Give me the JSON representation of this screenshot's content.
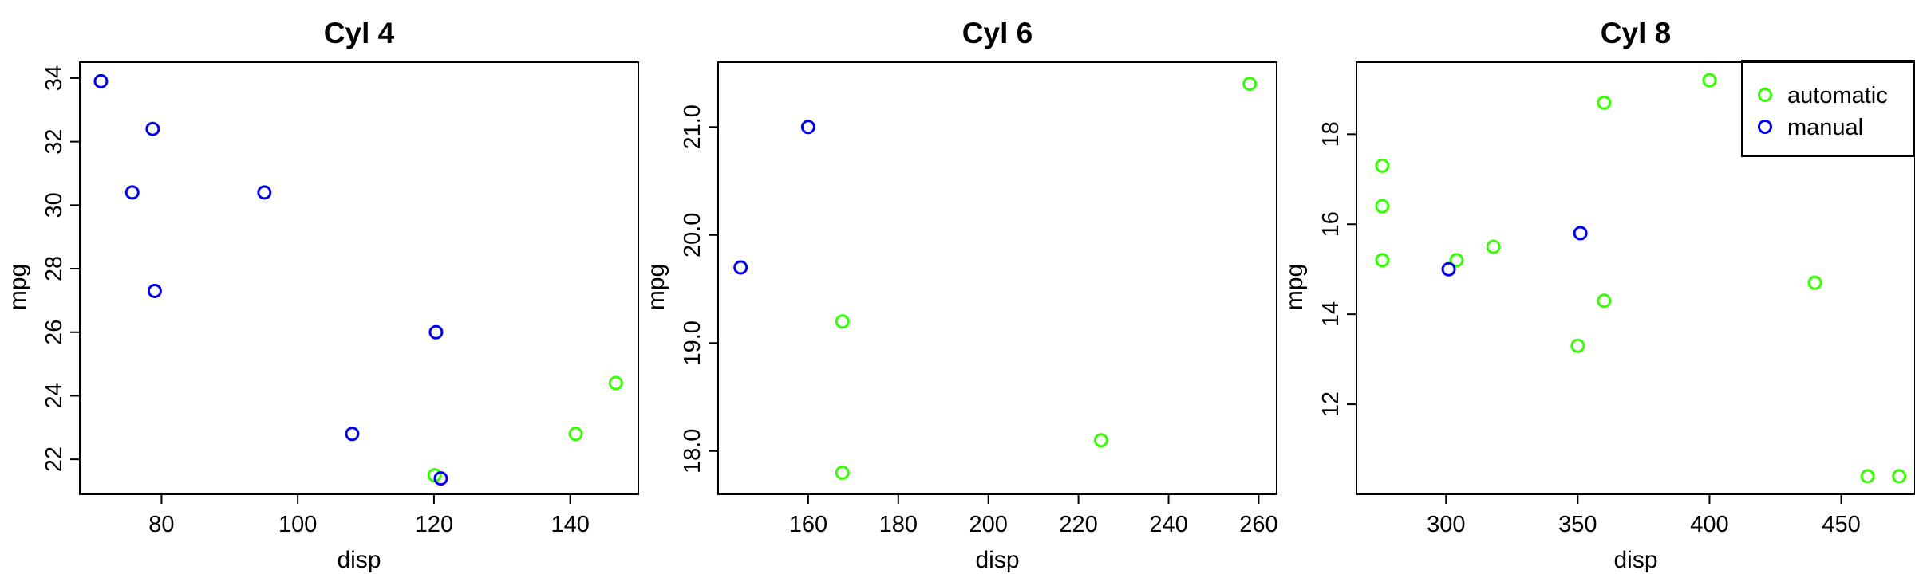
{
  "colors": {
    "automatic": "#33ff00",
    "manual": "#0000ee"
  },
  "legend": {
    "position": "top-right",
    "panel": 2,
    "entries": [
      {
        "key": "automatic",
        "label": "automatic"
      },
      {
        "key": "manual",
        "label": "manual"
      }
    ]
  },
  "chart_data": [
    {
      "type": "scatter",
      "title": "Cyl 4",
      "xlabel": "disp",
      "ylabel": "mpg",
      "xlim": [
        68,
        150
      ],
      "ylim": [
        20.9,
        34.5
      ],
      "xticks": [
        80,
        100,
        120,
        140
      ],
      "xtick_labels": [
        "80",
        "100",
        "120",
        "140"
      ],
      "yticks": [
        22,
        24,
        26,
        28,
        30,
        32,
        34
      ],
      "ytick_labels": [
        "22",
        "24",
        "26",
        "28",
        "30",
        "32",
        "34"
      ],
      "series": [
        {
          "name": "automatic",
          "points": [
            [
              120.1,
              21.5
            ],
            [
              146.7,
              24.4
            ],
            [
              140.8,
              22.8
            ]
          ]
        },
        {
          "name": "manual",
          "points": [
            [
              108,
              22.8
            ],
            [
              78.7,
              32.4
            ],
            [
              75.7,
              30.4
            ],
            [
              71.1,
              33.9
            ],
            [
              79,
              27.3
            ],
            [
              120.3,
              26
            ],
            [
              95.1,
              30.4
            ],
            [
              121,
              21.4
            ]
          ]
        }
      ]
    },
    {
      "type": "scatter",
      "title": "Cyl 6",
      "xlabel": "disp",
      "ylabel": "mpg",
      "xlim": [
        140,
        264
      ],
      "ylim": [
        17.6,
        21.6
      ],
      "xticks": [
        160,
        180,
        200,
        220,
        240,
        260
      ],
      "xtick_labels": [
        "160",
        "180",
        "200",
        "220",
        "240",
        "260"
      ],
      "yticks": [
        18,
        19,
        20,
        21
      ],
      "ytick_labels": [
        "18.0",
        "19.0",
        "20.0",
        "21.0"
      ],
      "series": [
        {
          "name": "automatic",
          "points": [
            [
              258,
              21.4
            ],
            [
              225,
              18.1
            ],
            [
              167.6,
              19.2
            ],
            [
              167.6,
              17.8
            ]
          ]
        },
        {
          "name": "manual",
          "points": [
            [
              160,
              21.0
            ],
            [
              145,
              19.7
            ]
          ]
        }
      ]
    },
    {
      "type": "scatter",
      "title": "Cyl 8",
      "xlabel": "disp",
      "ylabel": "mpg",
      "xlim": [
        266,
        478
      ],
      "ylim": [
        10.0,
        19.6
      ],
      "xticks": [
        300,
        350,
        400,
        450
      ],
      "xtick_labels": [
        "300",
        "350",
        "400",
        "450"
      ],
      "yticks": [
        12,
        14,
        16,
        18
      ],
      "ytick_labels": [
        "12",
        "14",
        "16",
        "18"
      ],
      "series": [
        {
          "name": "automatic",
          "points": [
            [
              360,
              18.7
            ],
            [
              360,
              14.3
            ],
            [
              275.8,
              16.4
            ],
            [
              275.8,
              17.3
            ],
            [
              275.8,
              15.2
            ],
            [
              472,
              10.4
            ],
            [
              460,
              10.4
            ],
            [
              440,
              14.7
            ],
            [
              318,
              15.5
            ],
            [
              304,
              15.2
            ],
            [
              350,
              13.3
            ],
            [
              400,
              19.2
            ]
          ]
        },
        {
          "name": "manual",
          "points": [
            [
              351,
              15.8
            ],
            [
              301,
              15.0
            ]
          ]
        }
      ]
    }
  ]
}
